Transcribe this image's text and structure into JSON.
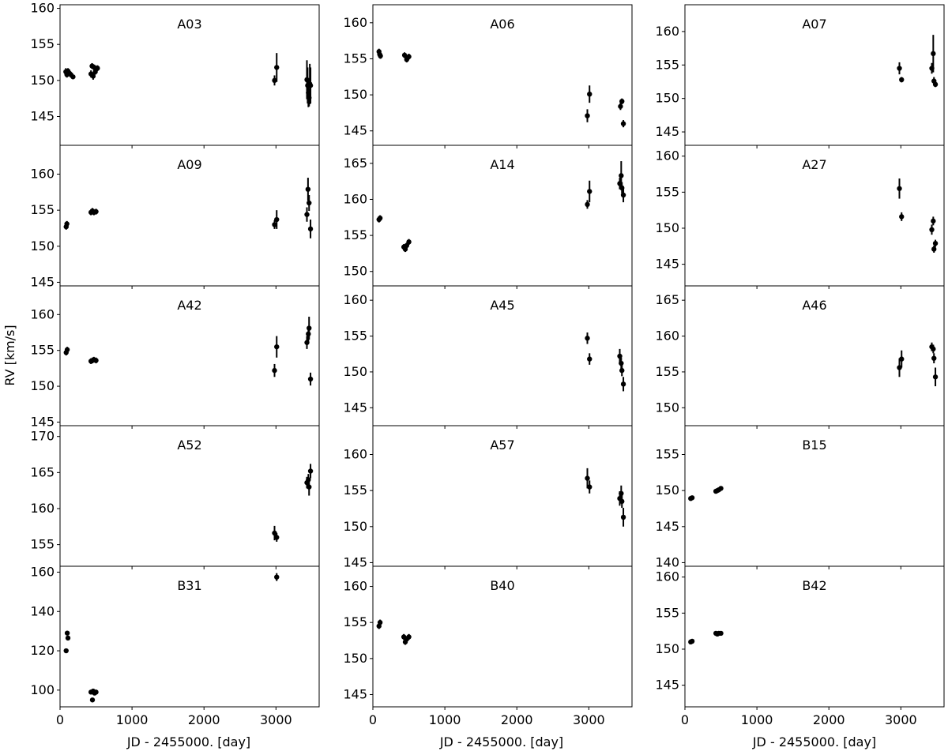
{
  "figure": {
    "ylabel": "RV [km/s]",
    "xlabel": "JD - 2455000. [day]",
    "marker_color": "#000000"
  },
  "chart_data": [
    {
      "type": "scatter",
      "label": "A03",
      "xlim": [
        0,
        3600
      ],
      "ylim": [
        141,
        160.5
      ],
      "yticks": [
        145,
        150,
        155,
        160
      ],
      "xticks": [
        0,
        1000,
        2000,
        3000
      ],
      "show_xtick_labels": false,
      "points": [
        {
          "x": 80,
          "y": 151.2,
          "err": 0.5
        },
        {
          "x": 95,
          "y": 150.8,
          "err": 0.4
        },
        {
          "x": 110,
          "y": 151.3,
          "err": 0.4
        },
        {
          "x": 130,
          "y": 151.0,
          "err": 0.4
        },
        {
          "x": 150,
          "y": 150.8,
          "err": 0.4
        },
        {
          "x": 180,
          "y": 150.5,
          "err": 0.3
        },
        {
          "x": 430,
          "y": 150.9,
          "err": 0.5
        },
        {
          "x": 445,
          "y": 152.0,
          "err": 0.4
        },
        {
          "x": 460,
          "y": 150.6,
          "err": 0.5
        },
        {
          "x": 475,
          "y": 151.8,
          "err": 0.4
        },
        {
          "x": 490,
          "y": 151.2,
          "err": 0.4
        },
        {
          "x": 520,
          "y": 151.7,
          "err": 0.4
        },
        {
          "x": 2980,
          "y": 150.0,
          "err": 0.7
        },
        {
          "x": 3010,
          "y": 151.8,
          "err": 2.0
        },
        {
          "x": 3430,
          "y": 150.1,
          "err": 2.7
        },
        {
          "x": 3440,
          "y": 149.3,
          "err": 2.5
        },
        {
          "x": 3450,
          "y": 148.3,
          "err": 2.0
        },
        {
          "x": 3460,
          "y": 147.6,
          "err": 1.2
        },
        {
          "x": 3470,
          "y": 149.5,
          "err": 2.8
        },
        {
          "x": 3480,
          "y": 149.3,
          "err": 2.5
        }
      ]
    },
    {
      "type": "scatter",
      "label": "A06",
      "xlim": [
        0,
        3600
      ],
      "ylim": [
        143,
        162.5
      ],
      "yticks": [
        145,
        150,
        155,
        160
      ],
      "xticks": [
        0,
        1000,
        2000,
        3000
      ],
      "show_xtick_labels": false,
      "points": [
        {
          "x": 85,
          "y": 156.0,
          "err": 0.4
        },
        {
          "x": 95,
          "y": 155.6,
          "err": 0.4
        },
        {
          "x": 105,
          "y": 155.4,
          "err": 0.4
        },
        {
          "x": 440,
          "y": 155.5,
          "err": 0.4
        },
        {
          "x": 470,
          "y": 154.9,
          "err": 0.4
        },
        {
          "x": 500,
          "y": 155.3,
          "err": 0.4
        },
        {
          "x": 2980,
          "y": 147.1,
          "err": 0.9
        },
        {
          "x": 3010,
          "y": 150.1,
          "err": 1.2
        },
        {
          "x": 3440,
          "y": 148.4,
          "err": 0.5
        },
        {
          "x": 3460,
          "y": 149.1,
          "err": 0.4
        },
        {
          "x": 3480,
          "y": 146.0,
          "err": 0.5
        }
      ]
    },
    {
      "type": "scatter",
      "label": "A07",
      "xlim": [
        0,
        3600
      ],
      "ylim": [
        143,
        164
      ],
      "yticks": [
        145,
        150,
        155,
        160
      ],
      "xticks": [
        0,
        1000,
        2000,
        3000
      ],
      "show_xtick_labels": false,
      "points": [
        {
          "x": 2980,
          "y": 154.5,
          "err": 0.9
        },
        {
          "x": 3010,
          "y": 152.8,
          "err": 0.4
        },
        {
          "x": 3430,
          "y": 154.5,
          "err": 0.8
        },
        {
          "x": 3450,
          "y": 156.7,
          "err": 2.8
        },
        {
          "x": 3460,
          "y": 152.6,
          "err": 0.6
        },
        {
          "x": 3480,
          "y": 152.1,
          "err": 0.4
        }
      ]
    },
    {
      "type": "scatter",
      "label": "A09",
      "xlim": [
        0,
        3600
      ],
      "ylim": [
        144.5,
        164
      ],
      "yticks": [
        145,
        150,
        155,
        160
      ],
      "xticks": [
        0,
        1000,
        2000,
        3000
      ],
      "show_xtick_labels": false,
      "points": [
        {
          "x": 85,
          "y": 152.7,
          "err": 0.4
        },
        {
          "x": 95,
          "y": 153.1,
          "err": 0.4
        },
        {
          "x": 430,
          "y": 154.7,
          "err": 0.4
        },
        {
          "x": 450,
          "y": 154.9,
          "err": 0.4
        },
        {
          "x": 470,
          "y": 154.7,
          "err": 0.4
        },
        {
          "x": 500,
          "y": 154.8,
          "err": 0.4
        },
        {
          "x": 2980,
          "y": 153.0,
          "err": 0.6
        },
        {
          "x": 3010,
          "y": 153.7,
          "err": 1.3
        },
        {
          "x": 3430,
          "y": 154.4,
          "err": 1.0
        },
        {
          "x": 3445,
          "y": 157.9,
          "err": 1.6
        },
        {
          "x": 3460,
          "y": 156.0,
          "err": 1.1
        },
        {
          "x": 3480,
          "y": 152.4,
          "err": 1.3
        }
      ]
    },
    {
      "type": "scatter",
      "label": "A14",
      "xlim": [
        0,
        3600
      ],
      "ylim": [
        148,
        167.5
      ],
      "yticks": [
        150,
        155,
        160,
        165
      ],
      "xticks": [
        0,
        1000,
        2000,
        3000
      ],
      "show_xtick_labels": false,
      "points": [
        {
          "x": 85,
          "y": 157.2,
          "err": 0.4
        },
        {
          "x": 100,
          "y": 157.4,
          "err": 0.4
        },
        {
          "x": 430,
          "y": 153.4,
          "err": 0.4
        },
        {
          "x": 450,
          "y": 153.1,
          "err": 0.4
        },
        {
          "x": 470,
          "y": 153.6,
          "err": 0.4
        },
        {
          "x": 500,
          "y": 154.1,
          "err": 0.4
        },
        {
          "x": 2980,
          "y": 159.3,
          "err": 0.6
        },
        {
          "x": 3010,
          "y": 161.1,
          "err": 1.5
        },
        {
          "x": 3430,
          "y": 162.2,
          "err": 0.8
        },
        {
          "x": 3450,
          "y": 163.3,
          "err": 2.0
        },
        {
          "x": 3460,
          "y": 161.6,
          "err": 0.8
        },
        {
          "x": 3480,
          "y": 160.6,
          "err": 1.0
        }
      ]
    },
    {
      "type": "scatter",
      "label": "A27",
      "xlim": [
        0,
        3600
      ],
      "ylim": [
        142,
        161.5
      ],
      "yticks": [
        145,
        150,
        155,
        160
      ],
      "xticks": [
        0,
        1000,
        2000,
        3000
      ],
      "show_xtick_labels": false,
      "points": [
        {
          "x": 2980,
          "y": 155.5,
          "err": 1.4
        },
        {
          "x": 3010,
          "y": 151.6,
          "err": 0.6
        },
        {
          "x": 3430,
          "y": 149.8,
          "err": 0.7
        },
        {
          "x": 3450,
          "y": 151.0,
          "err": 0.6
        },
        {
          "x": 3460,
          "y": 147.1,
          "err": 0.5
        },
        {
          "x": 3480,
          "y": 147.9,
          "err": 0.5
        }
      ]
    },
    {
      "type": "scatter",
      "label": "A42",
      "xlim": [
        0,
        3600
      ],
      "ylim": [
        144.5,
        164
      ],
      "yticks": [
        145,
        150,
        155,
        160
      ],
      "xticks": [
        0,
        1000,
        2000,
        3000
      ],
      "show_xtick_labels": false,
      "points": [
        {
          "x": 85,
          "y": 154.7,
          "err": 0.4
        },
        {
          "x": 100,
          "y": 155.1,
          "err": 0.4
        },
        {
          "x": 430,
          "y": 153.5,
          "err": 0.4
        },
        {
          "x": 450,
          "y": 153.6,
          "err": 0.4
        },
        {
          "x": 470,
          "y": 153.7,
          "err": 0.4
        },
        {
          "x": 500,
          "y": 153.6,
          "err": 0.4
        },
        {
          "x": 2980,
          "y": 152.2,
          "err": 0.9
        },
        {
          "x": 3010,
          "y": 155.5,
          "err": 1.5
        },
        {
          "x": 3430,
          "y": 156.1,
          "err": 0.9
        },
        {
          "x": 3450,
          "y": 157.3,
          "err": 1.1
        },
        {
          "x": 3460,
          "y": 158.1,
          "err": 1.6
        },
        {
          "x": 3480,
          "y": 151.0,
          "err": 0.9
        }
      ]
    },
    {
      "type": "scatter",
      "label": "A45",
      "xlim": [
        0,
        3600
      ],
      "ylim": [
        142.5,
        162
      ],
      "yticks": [
        145,
        150,
        155,
        160
      ],
      "xticks": [
        0,
        1000,
        2000,
        3000
      ],
      "show_xtick_labels": false,
      "points": [
        {
          "x": 2980,
          "y": 154.7,
          "err": 0.8
        },
        {
          "x": 3010,
          "y": 151.8,
          "err": 0.8
        },
        {
          "x": 3430,
          "y": 152.2,
          "err": 1.0
        },
        {
          "x": 3450,
          "y": 151.2,
          "err": 0.8
        },
        {
          "x": 3460,
          "y": 150.2,
          "err": 0.8
        },
        {
          "x": 3480,
          "y": 148.3,
          "err": 1.0
        }
      ]
    },
    {
      "type": "scatter",
      "label": "A46",
      "xlim": [
        0,
        3600
      ],
      "ylim": [
        147.5,
        167
      ],
      "yticks": [
        150,
        155,
        160,
        165
      ],
      "xticks": [
        0,
        1000,
        2000,
        3000
      ],
      "show_xtick_labels": false,
      "points": [
        {
          "x": 2980,
          "y": 155.6,
          "err": 1.3
        },
        {
          "x": 3010,
          "y": 156.8,
          "err": 1.2
        },
        {
          "x": 3430,
          "y": 158.5,
          "err": 0.6
        },
        {
          "x": 3450,
          "y": 158.2,
          "err": 0.6
        },
        {
          "x": 3460,
          "y": 156.9,
          "err": 0.7
        },
        {
          "x": 3480,
          "y": 154.3,
          "err": 1.3
        }
      ]
    },
    {
      "type": "scatter",
      "label": "A52",
      "xlim": [
        0,
        3600
      ],
      "ylim": [
        152,
        171.5
      ],
      "yticks": [
        155,
        160,
        165,
        170
      ],
      "xticks": [
        0,
        1000,
        2000,
        3000
      ],
      "show_xtick_labels": false,
      "points": [
        {
          "x": 2980,
          "y": 156.6,
          "err": 1.0
        },
        {
          "x": 3010,
          "y": 156.0,
          "err": 0.6
        },
        {
          "x": 3430,
          "y": 163.6,
          "err": 0.8
        },
        {
          "x": 3450,
          "y": 164.0,
          "err": 0.8
        },
        {
          "x": 3460,
          "y": 163.0,
          "err": 1.2
        },
        {
          "x": 3480,
          "y": 165.2,
          "err": 1.0
        }
      ]
    },
    {
      "type": "scatter",
      "label": "A57",
      "xlim": [
        0,
        3600
      ],
      "ylim": [
        144.5,
        164
      ],
      "yticks": [
        145,
        150,
        155,
        160
      ],
      "xticks": [
        0,
        1000,
        2000,
        3000
      ],
      "show_xtick_labels": false,
      "points": [
        {
          "x": 2980,
          "y": 156.7,
          "err": 1.4
        },
        {
          "x": 3010,
          "y": 155.5,
          "err": 0.9
        },
        {
          "x": 3430,
          "y": 153.9,
          "err": 1.0
        },
        {
          "x": 3450,
          "y": 154.6,
          "err": 1.1
        },
        {
          "x": 3460,
          "y": 153.5,
          "err": 0.9
        },
        {
          "x": 3480,
          "y": 151.3,
          "err": 1.3
        }
      ]
    },
    {
      "type": "scatter",
      "label": "B15",
      "xlim": [
        0,
        3600
      ],
      "ylim": [
        139.5,
        159
      ],
      "yticks": [
        140,
        145,
        150,
        155
      ],
      "xticks": [
        0,
        1000,
        2000,
        3000
      ],
      "show_xtick_labels": false,
      "points": [
        {
          "x": 80,
          "y": 148.9,
          "err": 0.3
        },
        {
          "x": 100,
          "y": 149.0,
          "err": 0.3
        },
        {
          "x": 430,
          "y": 149.9,
          "err": 0.3
        },
        {
          "x": 450,
          "y": 150.0,
          "err": 0.3
        },
        {
          "x": 470,
          "y": 150.1,
          "err": 0.3
        },
        {
          "x": 500,
          "y": 150.3,
          "err": 0.3
        }
      ]
    },
    {
      "type": "scatter",
      "label": "B31",
      "xlim": [
        0,
        3600
      ],
      "ylim": [
        91.5,
        163
      ],
      "yticks": [
        100,
        120,
        140,
        160
      ],
      "xticks": [
        0,
        1000,
        2000,
        3000
      ],
      "show_xtick_labels": true,
      "points": [
        {
          "x": 85,
          "y": 120.0,
          "err": 0.5
        },
        {
          "x": 100,
          "y": 129.0,
          "err": 0.5
        },
        {
          "x": 110,
          "y": 126.5,
          "err": 0.5
        },
        {
          "x": 430,
          "y": 99.0,
          "err": 0.5
        },
        {
          "x": 450,
          "y": 95.0,
          "err": 0.5
        },
        {
          "x": 460,
          "y": 99.5,
          "err": 0.5
        },
        {
          "x": 480,
          "y": 98.5,
          "err": 0.5
        },
        {
          "x": 500,
          "y": 99.0,
          "err": 0.5
        },
        {
          "x": 3010,
          "y": 157.5,
          "err": 2.0
        }
      ]
    },
    {
      "type": "scatter",
      "label": "B40",
      "xlim": [
        0,
        3600
      ],
      "ylim": [
        143.3,
        162.8
      ],
      "yticks": [
        145,
        150,
        155,
        160
      ],
      "xticks": [
        0,
        1000,
        2000,
        3000
      ],
      "show_xtick_labels": true,
      "points": [
        {
          "x": 85,
          "y": 154.5,
          "err": 0.4
        },
        {
          "x": 100,
          "y": 155.0,
          "err": 0.4
        },
        {
          "x": 430,
          "y": 153.0,
          "err": 0.4
        },
        {
          "x": 450,
          "y": 152.3,
          "err": 0.4
        },
        {
          "x": 470,
          "y": 152.7,
          "err": 0.4
        },
        {
          "x": 500,
          "y": 153.0,
          "err": 0.4
        }
      ]
    },
    {
      "type": "scatter",
      "label": "B42",
      "xlim": [
        0,
        3600
      ],
      "ylim": [
        142,
        161.5
      ],
      "yticks": [
        145,
        150,
        155,
        160
      ],
      "xticks": [
        0,
        1000,
        2000,
        3000
      ],
      "show_xtick_labels": true,
      "points": [
        {
          "x": 80,
          "y": 151.0,
          "err": 0.3
        },
        {
          "x": 100,
          "y": 151.1,
          "err": 0.3
        },
        {
          "x": 430,
          "y": 152.2,
          "err": 0.3
        },
        {
          "x": 450,
          "y": 152.1,
          "err": 0.3
        },
        {
          "x": 470,
          "y": 152.2,
          "err": 0.3
        },
        {
          "x": 500,
          "y": 152.2,
          "err": 0.3
        }
      ]
    }
  ]
}
